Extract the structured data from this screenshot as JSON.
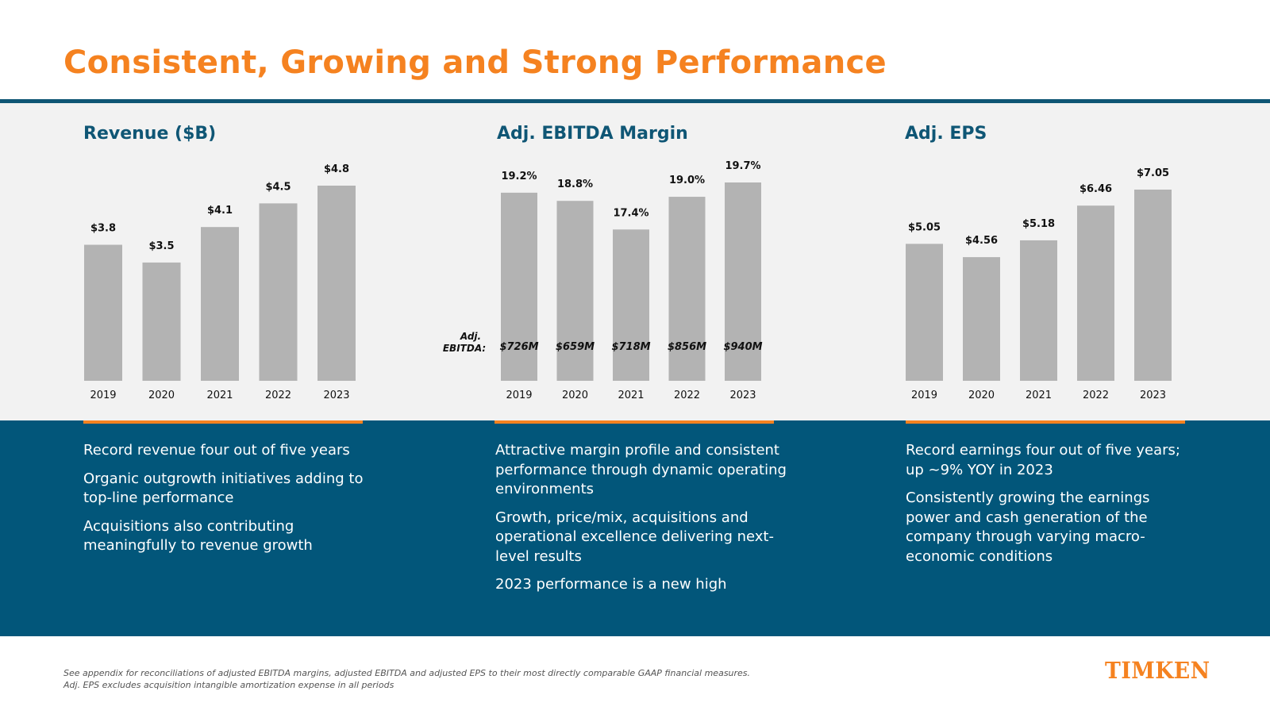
{
  "title": "Consistent, Growing and Strong Performance",
  "colors": {
    "accent": "#f58220",
    "navy": "#0f5675",
    "bar": "#b3b3b3",
    "band": "#02567a"
  },
  "panels": [
    {
      "title": "Revenue ($B)",
      "bullets": [
        "Record revenue four out of five years",
        "Organic outgrowth initiatives adding to top-line performance",
        "Acquisitions also contributing meaningfully to revenue growth"
      ]
    },
    {
      "title": "Adj. EBITDA Margin",
      "bullets": [
        "Attractive margin profile and consistent performance through dynamic operating environments",
        "Growth, price/mix, acquisitions and operational excellence delivering next-level results",
        "2023 performance is a new high"
      ]
    },
    {
      "title": "Adj. EPS",
      "bullets": [
        "Record earnings four out of five years; up ~9% YOY in 2023",
        "Consistently growing the earnings power and cash generation of the company through varying macro-economic conditions"
      ]
    }
  ],
  "chart_data": [
    {
      "type": "bar",
      "title": "Revenue ($B)",
      "categories": [
        "2019",
        "2020",
        "2021",
        "2022",
        "2023"
      ],
      "values": [
        3.8,
        3.5,
        4.1,
        4.5,
        4.8
      ],
      "labels": [
        "$3.8",
        "$3.5",
        "$4.1",
        "$4.5",
        "$4.8"
      ],
      "ylim": [
        1.5,
        4.8
      ]
    },
    {
      "type": "bar",
      "title": "Adj. EBITDA Margin",
      "categories": [
        "2019",
        "2020",
        "2021",
        "2022",
        "2023"
      ],
      "values": [
        19.2,
        18.8,
        17.4,
        19.0,
        19.7
      ],
      "labels": [
        "19.2%",
        "18.8%",
        "17.4%",
        "19.0%",
        "19.7%"
      ],
      "inner_label_title": "Adj. EBITDA:",
      "inner_labels": [
        "$726M",
        "$659M",
        "$718M",
        "$856M",
        "$940M"
      ],
      "ylim": [
        10,
        19.7
      ]
    },
    {
      "type": "bar",
      "title": "Adj. EPS",
      "categories": [
        "2019",
        "2020",
        "2021",
        "2022",
        "2023"
      ],
      "values": [
        5.05,
        4.56,
        5.18,
        6.46,
        7.05
      ],
      "labels": [
        "$5.05",
        "$4.56",
        "$5.18",
        "$6.46",
        "$7.05"
      ],
      "ylim": [
        0,
        7.05
      ]
    }
  ],
  "footnote": [
    "See appendix for reconciliations of adjusted EBITDA margins, adjusted EBITDA and adjusted EPS to their most directly comparable GAAP financial measures.",
    "Adj. EPS excludes acquisition intangible amortization expense in all periods"
  ],
  "logo": "TIMKEN"
}
